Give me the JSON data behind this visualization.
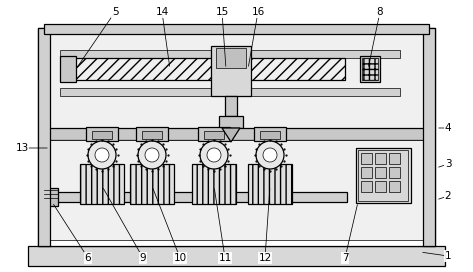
{
  "bg_color": "#ffffff",
  "lc": "#000000",
  "fc_outer": "#e8e8e8",
  "fc_base": "#d4d4d4",
  "fc_mid": "#c0c0c0",
  "fc_hatch": "#f0f0f0",
  "fc_dark": "#a8a8a8"
}
